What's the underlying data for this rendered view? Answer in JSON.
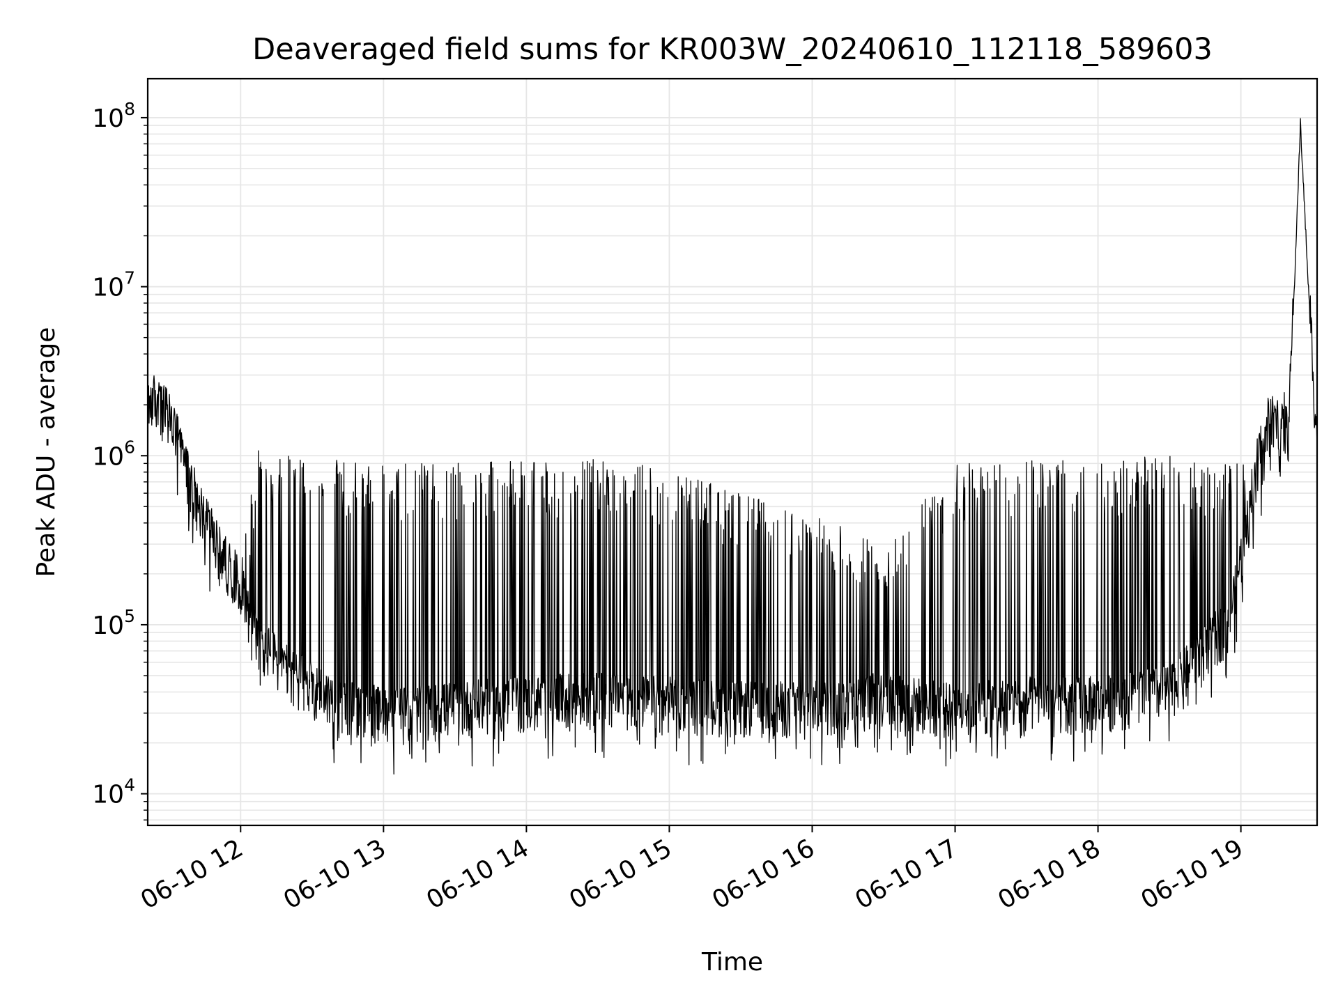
{
  "chart_data": {
    "type": "line",
    "title": "Deaveraged field sums for KR003W_20240610_112118_589603",
    "xlabel": "Time",
    "ylabel": "Peak ADU - average",
    "yscale": "log",
    "ylim": [
      6500,
      170000000
    ],
    "xlim": [
      "2024-06-10 11:21",
      "2024-06-10 19:32"
    ],
    "x_ticks": [
      {
        "t": "2024-06-10 12:00",
        "label": "06-10 12"
      },
      {
        "t": "2024-06-10 13:00",
        "label": "06-10 13"
      },
      {
        "t": "2024-06-10 14:00",
        "label": "06-10 14"
      },
      {
        "t": "2024-06-10 15:00",
        "label": "06-10 15"
      },
      {
        "t": "2024-06-10 16:00",
        "label": "06-10 16"
      },
      {
        "t": "2024-06-10 17:00",
        "label": "06-10 17"
      },
      {
        "t": "2024-06-10 18:00",
        "label": "06-10 18"
      },
      {
        "t": "2024-06-10 19:00",
        "label": "06-10 19"
      }
    ],
    "y_ticks": [
      {
        "value": 10000,
        "base": "10",
        "exp": "4"
      },
      {
        "value": 100000,
        "base": "10",
        "exp": "5"
      },
      {
        "value": 1000000,
        "base": "10",
        "exp": "6"
      },
      {
        "value": 10000000,
        "base": "10",
        "exp": "7"
      },
      {
        "value": 100000000,
        "base": "10",
        "exp": "8"
      }
    ],
    "grid": true,
    "line_color": "#000000",
    "grid_color": "#e6e6e6",
    "series_envelope": {
      "t": [
        "2024-06-10 11:21",
        "2024-06-10 11:30",
        "2024-06-10 11:40",
        "2024-06-10 11:50",
        "2024-06-10 12:00",
        "2024-06-10 12:07",
        "2024-06-10 12:20",
        "2024-06-10 12:40",
        "2024-06-10 13:00",
        "2024-06-10 13:10",
        "2024-06-10 13:30",
        "2024-06-10 14:00",
        "2024-06-10 14:30",
        "2024-06-10 15:00",
        "2024-06-10 15:30",
        "2024-06-10 16:00",
        "2024-06-10 16:30",
        "2024-06-10 17:00",
        "2024-06-10 17:30",
        "2024-06-10 18:00",
        "2024-06-10 18:30",
        "2024-06-10 18:55",
        "2024-06-10 19:05",
        "2024-06-10 19:12",
        "2024-06-10 19:20",
        "2024-06-10 19:25",
        "2024-06-10 19:32"
      ],
      "baseline": [
        2000000,
        1500000,
        550000,
        250000,
        150000,
        70000,
        45000,
        30000,
        26000,
        26000,
        28000,
        30000,
        32000,
        30000,
        28000,
        28000,
        32000,
        27000,
        30000,
        30000,
        35000,
        90000,
        500000,
        1300000,
        1200000,
        95000000,
        900000
      ],
      "upper": [
        3000000,
        2500000,
        900000,
        400000,
        250000,
        1100000,
        1000000,
        950000,
        900000,
        900000,
        900000,
        950000,
        950000,
        850000,
        600000,
        450000,
        300000,
        900000,
        950000,
        950000,
        1000000,
        900000,
        1000000,
        2500000,
        2500000,
        100000000,
        2000000
      ]
    }
  }
}
